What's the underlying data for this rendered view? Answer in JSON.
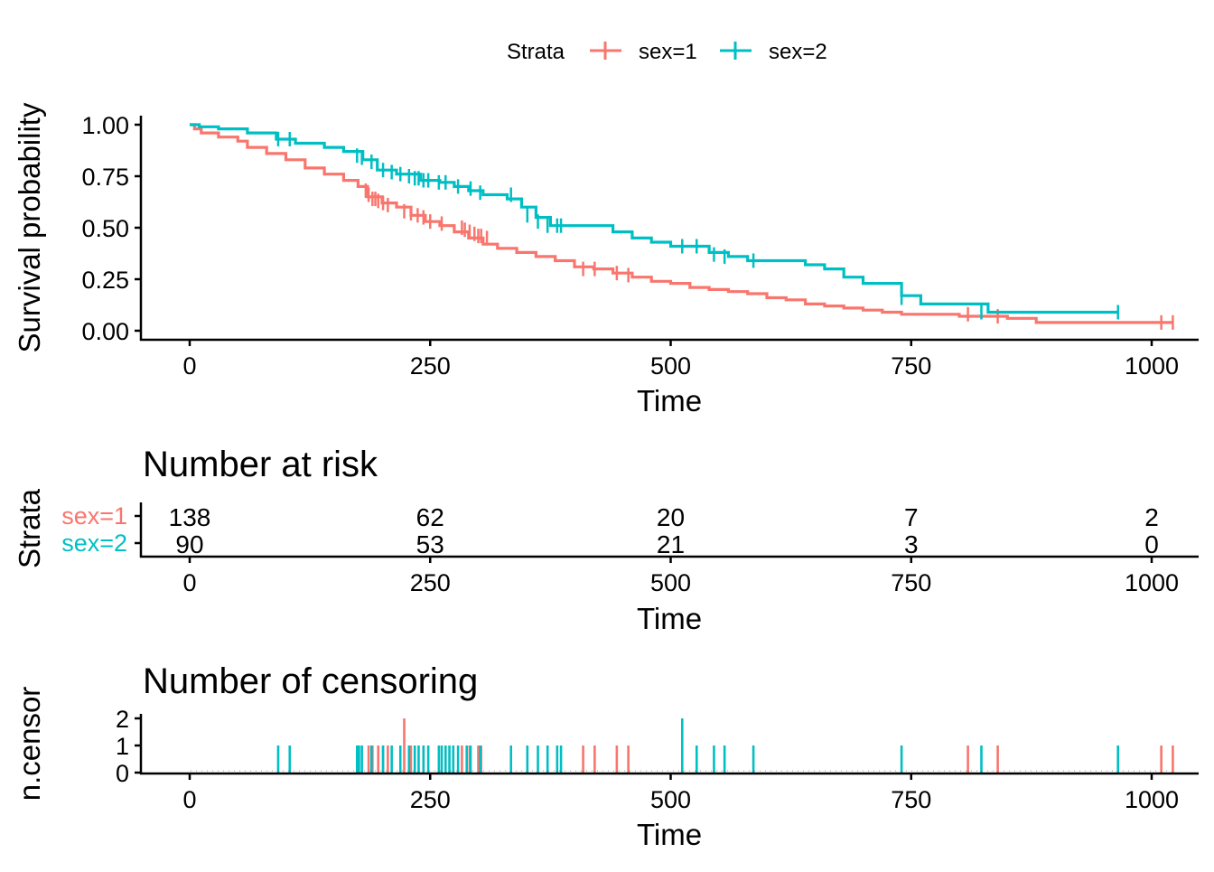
{
  "legend": {
    "title": "Strata",
    "items": [
      {
        "label": "sex=1",
        "color": "#F8766D"
      },
      {
        "label": "sex=2",
        "color": "#00BFC4"
      }
    ]
  },
  "chart_data": [
    {
      "type": "line",
      "subtype": "kaplan-meier step",
      "xlabel": "Time",
      "ylabel": "Survival probability",
      "xlim": [
        -50,
        1050
      ],
      "ylim": [
        -0.04,
        1.05
      ],
      "xticks": [
        "0",
        "250",
        "500",
        "750",
        "1000"
      ],
      "yticks": [
        "0.00",
        "0.25",
        "0.50",
        "0.75",
        "1.00"
      ],
      "grid": false,
      "legend_position": "top",
      "series": [
        {
          "name": "sex=1",
          "color": "#F8766D",
          "x": [
            0,
            5,
            12,
            30,
            50,
            60,
            80,
            100,
            120,
            140,
            160,
            175,
            185,
            200,
            215,
            230,
            245,
            260,
            275,
            290,
            305,
            320,
            340,
            360,
            380,
            400,
            420,
            440,
            460,
            480,
            500,
            520,
            540,
            560,
            580,
            600,
            620,
            640,
            660,
            680,
            700,
            720,
            740,
            760,
            800,
            850,
            880,
            930,
            1022
          ],
          "y": [
            1.0,
            0.98,
            0.96,
            0.94,
            0.92,
            0.89,
            0.86,
            0.83,
            0.79,
            0.76,
            0.73,
            0.7,
            0.65,
            0.62,
            0.6,
            0.56,
            0.53,
            0.51,
            0.48,
            0.45,
            0.42,
            0.4,
            0.38,
            0.36,
            0.34,
            0.31,
            0.3,
            0.28,
            0.26,
            0.24,
            0.23,
            0.21,
            0.2,
            0.19,
            0.18,
            0.16,
            0.15,
            0.13,
            0.12,
            0.11,
            0.1,
            0.09,
            0.08,
            0.08,
            0.07,
            0.06,
            0.04,
            0.04,
            0.04
          ],
          "censor_x": [
            183,
            186,
            190,
            193,
            196,
            201,
            206,
            223,
            230,
            237,
            243,
            250,
            262,
            283,
            286,
            291,
            296,
            300,
            303,
            309,
            409,
            421,
            444,
            456,
            809,
            840,
            1010,
            1022
          ],
          "censor_y": [
            0.68,
            0.66,
            0.64,
            0.64,
            0.63,
            0.62,
            0.61,
            0.58,
            0.57,
            0.56,
            0.55,
            0.53,
            0.52,
            0.5,
            0.49,
            0.48,
            0.47,
            0.46,
            0.46,
            0.45,
            0.3,
            0.3,
            0.28,
            0.27,
            0.08,
            0.07,
            0.04,
            0.04
          ]
        },
        {
          "name": "sex=2",
          "color": "#00BFC4",
          "x": [
            0,
            10,
            30,
            60,
            90,
            110,
            140,
            160,
            180,
            195,
            215,
            240,
            260,
            275,
            290,
            305,
            330,
            345,
            360,
            375,
            400,
            420,
            440,
            460,
            480,
            500,
            520,
            540,
            560,
            580,
            600,
            640,
            660,
            680,
            700,
            740,
            760,
            830,
            880,
            965
          ],
          "y": [
            1.0,
            0.99,
            0.98,
            0.96,
            0.93,
            0.91,
            0.89,
            0.87,
            0.83,
            0.78,
            0.76,
            0.73,
            0.72,
            0.7,
            0.68,
            0.66,
            0.64,
            0.6,
            0.55,
            0.51,
            0.51,
            0.51,
            0.48,
            0.45,
            0.43,
            0.41,
            0.41,
            0.38,
            0.36,
            0.34,
            0.34,
            0.32,
            0.3,
            0.26,
            0.23,
            0.17,
            0.13,
            0.09,
            0.09,
            0.09
          ],
          "censor_x": [
            92,
            104,
            174,
            179,
            189,
            201,
            210,
            219,
            228,
            234,
            238,
            243,
            248,
            259,
            266,
            279,
            292,
            302,
            334,
            351,
            362,
            372,
            382,
            386,
            512,
            527,
            545,
            556,
            586,
            740,
            823,
            965
          ],
          "censor_y": [
            0.93,
            0.93,
            0.85,
            0.84,
            0.82,
            0.78,
            0.77,
            0.76,
            0.75,
            0.74,
            0.74,
            0.73,
            0.73,
            0.72,
            0.72,
            0.7,
            0.69,
            0.67,
            0.66,
            0.56,
            0.53,
            0.51,
            0.51,
            0.51,
            0.41,
            0.41,
            0.37,
            0.36,
            0.34,
            0.16,
            0.09,
            0.09
          ]
        }
      ]
    },
    {
      "type": "table",
      "title": "Number at risk",
      "xlabel": "Time",
      "ylabel": "Strata",
      "xlim": [
        -50,
        1050
      ],
      "xticks": [
        "0",
        "250",
        "500",
        "750",
        "1000"
      ],
      "times": [
        0,
        250,
        500,
        750,
        1000
      ],
      "rows": [
        {
          "name": "sex=1",
          "color": "#F8766D",
          "values": [
            138,
            62,
            20,
            7,
            2
          ]
        },
        {
          "name": "sex=2",
          "color": "#00BFC4",
          "values": [
            90,
            53,
            21,
            3,
            0
          ]
        }
      ]
    },
    {
      "type": "bar",
      "title": "Number of censoring",
      "xlabel": "Time",
      "ylabel": "n.censor",
      "xlim": [
        -50,
        1050
      ],
      "ylim": [
        0,
        2
      ],
      "xticks": [
        "0",
        "250",
        "500",
        "750",
        "1000"
      ],
      "yticks": [
        "0",
        "1",
        "2"
      ],
      "series": [
        {
          "name": "sex=1",
          "color": "#F8766D",
          "x": [
            186,
            190,
            196,
            201,
            206,
            223,
            230,
            243,
            283,
            291,
            300,
            303,
            409,
            421,
            444,
            456,
            809,
            840,
            1010,
            1022
          ],
          "values": [
            1,
            1,
            1,
            1,
            1,
            2,
            1,
            1,
            1,
            1,
            1,
            1,
            1,
            1,
            1,
            1,
            1,
            1,
            1,
            1
          ]
        },
        {
          "name": "sex=2",
          "color": "#00BFC4",
          "x": [
            92,
            104,
            174,
            176,
            179,
            189,
            201,
            210,
            219,
            228,
            234,
            238,
            243,
            248,
            259,
            262,
            266,
            270,
            274,
            279,
            288,
            292,
            302,
            334,
            351,
            362,
            372,
            382,
            386,
            512,
            527,
            545,
            556,
            586,
            740,
            823,
            965
          ],
          "values": [
            1,
            1,
            1,
            1,
            1,
            1,
            1,
            1,
            1,
            1,
            1,
            1,
            1,
            1,
            1,
            1,
            1,
            1,
            1,
            1,
            1,
            1,
            1,
            1,
            1,
            1,
            1,
            1,
            1,
            2,
            1,
            1,
            1,
            1,
            1,
            1,
            1
          ]
        }
      ]
    }
  ]
}
